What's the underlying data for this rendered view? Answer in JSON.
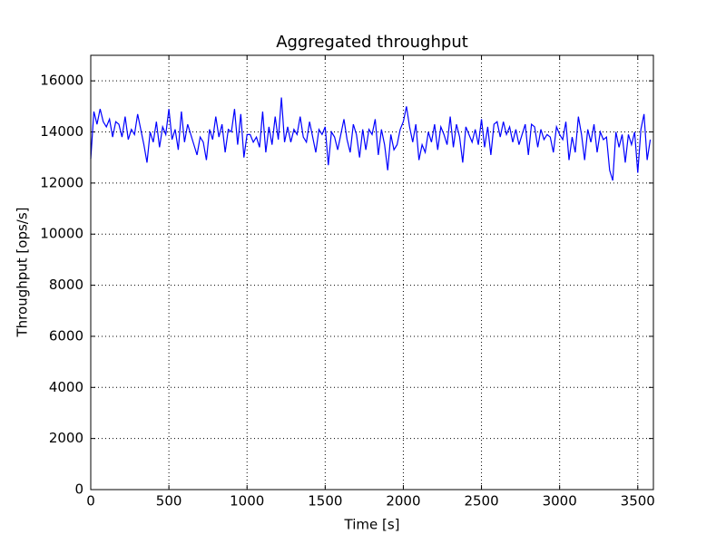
{
  "chart_data": {
    "type": "line",
    "title": "Aggregated throughput",
    "xlabel": "Time [s]",
    "ylabel": "Throughput [ops/s]",
    "xlim": [
      0,
      3600
    ],
    "ylim": [
      0,
      17000
    ],
    "xticks": [
      0,
      500,
      1000,
      1500,
      2000,
      2500,
      3000,
      3500
    ],
    "yticks": [
      0,
      2000,
      4000,
      6000,
      8000,
      10000,
      12000,
      14000,
      16000
    ],
    "grid": true,
    "x": [
      0,
      20,
      40,
      60,
      80,
      100,
      120,
      140,
      160,
      180,
      200,
      220,
      240,
      260,
      280,
      300,
      320,
      340,
      360,
      380,
      400,
      420,
      440,
      460,
      480,
      500,
      520,
      540,
      560,
      580,
      600,
      620,
      640,
      660,
      680,
      700,
      720,
      740,
      760,
      780,
      800,
      820,
      840,
      860,
      880,
      900,
      920,
      940,
      960,
      980,
      1000,
      1020,
      1040,
      1060,
      1080,
      1100,
      1120,
      1140,
      1160,
      1180,
      1200,
      1220,
      1240,
      1260,
      1280,
      1300,
      1320,
      1340,
      1360,
      1380,
      1400,
      1420,
      1440,
      1460,
      1480,
      1500,
      1520,
      1540,
      1560,
      1580,
      1600,
      1620,
      1640,
      1660,
      1680,
      1700,
      1720,
      1740,
      1760,
      1780,
      1800,
      1820,
      1840,
      1860,
      1880,
      1900,
      1920,
      1940,
      1960,
      1980,
      2000,
      2020,
      2040,
      2060,
      2080,
      2100,
      2120,
      2140,
      2160,
      2180,
      2200,
      2220,
      2240,
      2260,
      2280,
      2300,
      2320,
      2340,
      2360,
      2380,
      2400,
      2420,
      2440,
      2460,
      2480,
      2500,
      2520,
      2540,
      2560,
      2580,
      2600,
      2620,
      2640,
      2660,
      2680,
      2700,
      2720,
      2740,
      2760,
      2780,
      2800,
      2820,
      2840,
      2860,
      2880,
      2900,
      2920,
      2940,
      2960,
      2980,
      3000,
      3020,
      3040,
      3060,
      3080,
      3100,
      3120,
      3140,
      3160,
      3180,
      3200,
      3220,
      3240,
      3260,
      3280,
      3300,
      3320,
      3340,
      3360,
      3380,
      3400,
      3420,
      3440,
      3460,
      3480,
      3500,
      3520,
      3540,
      3560,
      3580
    ],
    "series": [
      {
        "color": "#0000ff",
        "values": [
          12950,
          14800,
          14300,
          14900,
          14400,
          14200,
          14500,
          13800,
          14400,
          14300,
          13800,
          14600,
          13700,
          14100,
          13900,
          14700,
          14100,
          13500,
          12800,
          14000,
          13600,
          14400,
          13400,
          14200,
          13900,
          14900,
          13700,
          14100,
          13300,
          14800,
          13600,
          14300,
          13900,
          13500,
          13100,
          13800,
          13600,
          12900,
          14100,
          13700,
          14600,
          13800,
          14300,
          13200,
          14100,
          14000,
          14900,
          13500,
          14700,
          13000,
          13900,
          13900,
          13600,
          13800,
          13400,
          14800,
          13200,
          14200,
          13500,
          14600,
          13700,
          15350,
          13600,
          14200,
          13600,
          14100,
          13900,
          14600,
          13800,
          13600,
          14400,
          13800,
          13200,
          14100,
          13900,
          14200,
          12700,
          14000,
          13800,
          13300,
          13900,
          14500,
          13700,
          13200,
          14300,
          13900,
          13000,
          14100,
          13300,
          14100,
          13900,
          14500,
          13100,
          14100,
          13500,
          12500,
          13900,
          13300,
          13500,
          14100,
          14400,
          15000,
          14200,
          13600,
          14300,
          12900,
          13500,
          13200,
          14000,
          13600,
          14300,
          13300,
          14200,
          13900,
          13500,
          14600,
          13400,
          14300,
          13800,
          12800,
          14200,
          13900,
          13600,
          14100,
          13500,
          14500,
          13400,
          14200,
          13100,
          14300,
          14400,
          13800,
          14400,
          13900,
          14200,
          13600,
          14100,
          13500,
          13900,
          14300,
          13100,
          14300,
          14200,
          13400,
          14100,
          13700,
          13900,
          13800,
          13200,
          14200,
          13900,
          13700,
          14400,
          12900,
          13800,
          13200,
          14600,
          13900,
          12900,
          14100,
          13600,
          14300,
          13200,
          14000,
          13700,
          13800,
          12500,
          12100,
          14000,
          13400,
          13900,
          12800,
          13900,
          13500,
          14000,
          12400,
          14100,
          14700,
          12900,
          13700
        ]
      }
    ]
  }
}
